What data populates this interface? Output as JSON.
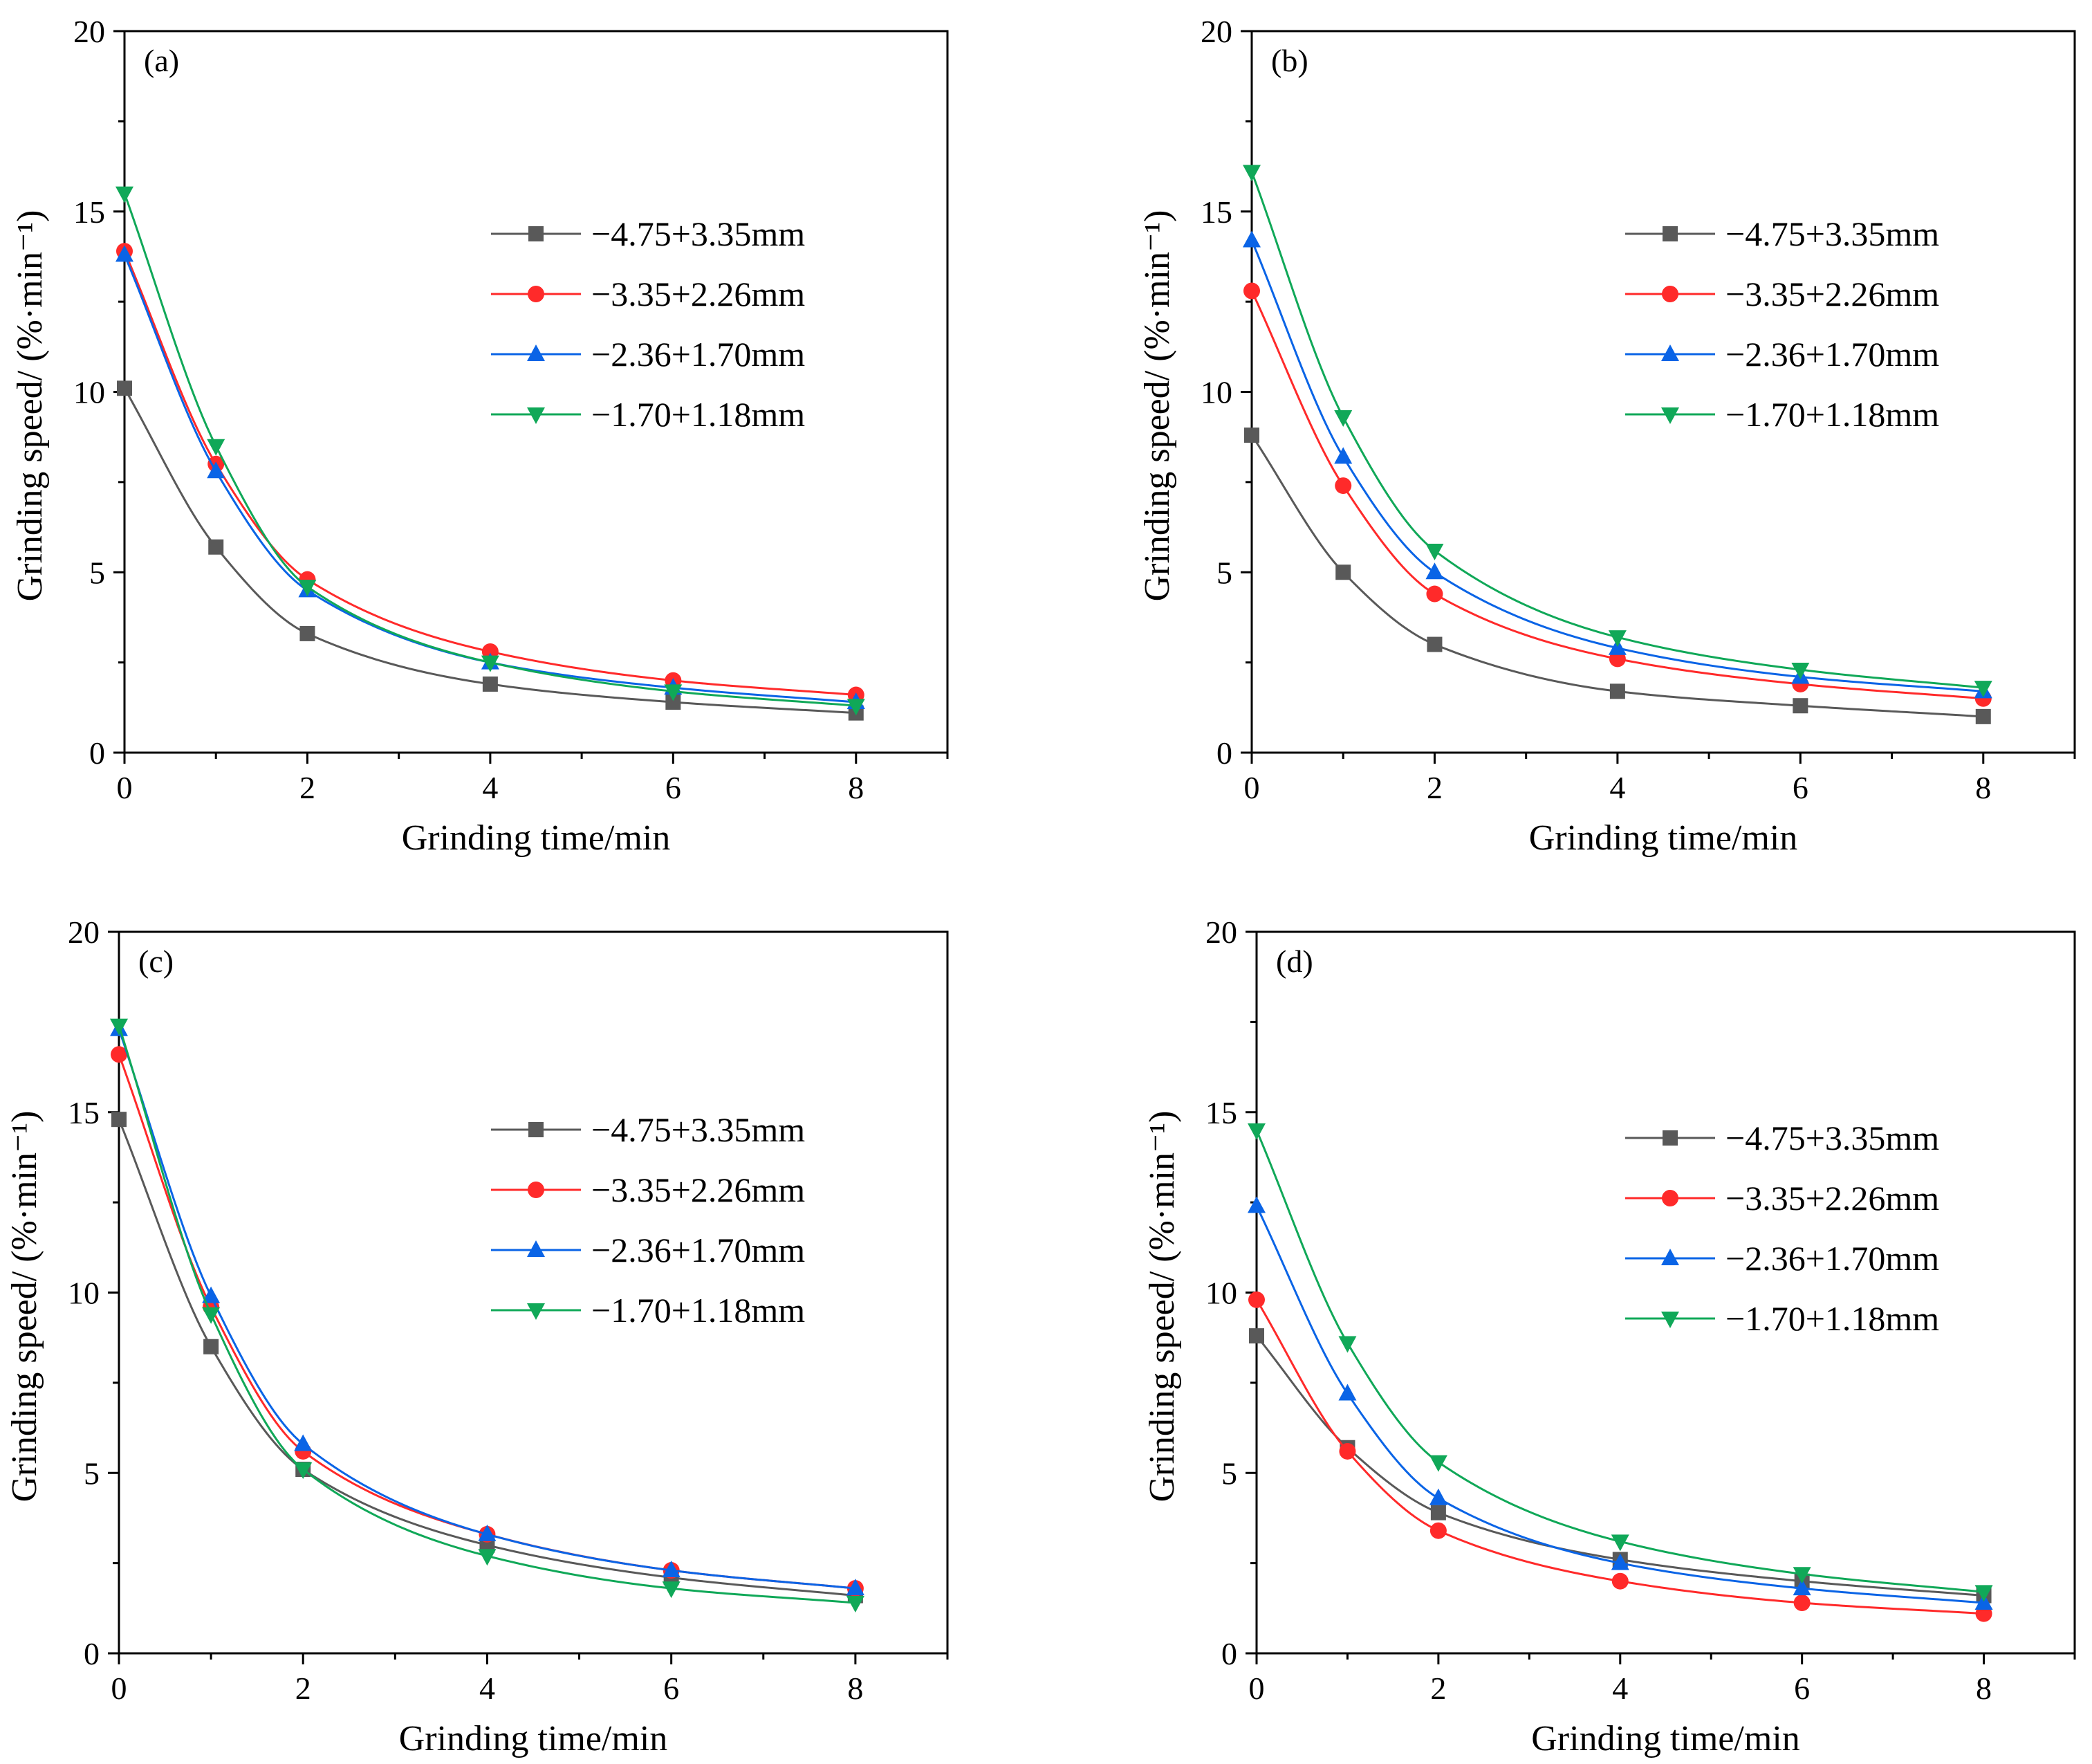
{
  "figure": {
    "colors": {
      "series": [
        "#595959",
        "#ff2a2a",
        "#0a64e6",
        "#10a858"
      ],
      "markers": [
        "square",
        "circle",
        "triangle-up",
        "triangle-down"
      ]
    },
    "legend_labels": [
      "−4.75+3.35mm",
      "−3.35+2.26mm",
      "−2.36+1.70mm",
      "−1.70+1.18mm"
    ]
  },
  "chart_data": [
    {
      "type": "line",
      "panel_label": "(a)",
      "xlabel": "Grinding time/min",
      "ylabel": "Grinding speed/ (%·min⁻¹)",
      "xlim": [
        0,
        9
      ],
      "ylim": [
        0,
        20
      ],
      "xticks": [
        0,
        2,
        4,
        6,
        8
      ],
      "yticks": [
        0,
        5,
        10,
        15,
        20
      ],
      "legend_position": "upper-middle",
      "x": [
        0,
        1,
        2,
        4,
        6,
        8
      ],
      "series": [
        {
          "name": "−4.75+3.35mm",
          "values": [
            10.1,
            5.7,
            3.3,
            1.9,
            1.4,
            1.1
          ]
        },
        {
          "name": "−3.35+2.26mm",
          "values": [
            13.9,
            8.0,
            4.8,
            2.8,
            2.0,
            1.6
          ]
        },
        {
          "name": "−2.36+1.70mm",
          "values": [
            13.8,
            7.8,
            4.5,
            2.5,
            1.8,
            1.4
          ]
        },
        {
          "name": "−1.70+1.18mm",
          "values": [
            15.5,
            8.5,
            4.6,
            2.5,
            1.7,
            1.3
          ]
        }
      ]
    },
    {
      "type": "line",
      "panel_label": "(b)",
      "xlabel": "Grinding time/min",
      "ylabel": "Grinding speed/ (%·min⁻¹)",
      "xlim": [
        0,
        9
      ],
      "ylim": [
        0,
        20
      ],
      "xticks": [
        0,
        2,
        4,
        6,
        8
      ],
      "yticks": [
        0,
        5,
        10,
        15,
        20
      ],
      "legend_position": "upper-right",
      "x": [
        0,
        1,
        2,
        4,
        6,
        8
      ],
      "series": [
        {
          "name": "−4.75+3.35mm",
          "values": [
            8.8,
            5.0,
            3.0,
            1.7,
            1.3,
            1.0
          ]
        },
        {
          "name": "−3.35+2.26mm",
          "values": [
            12.8,
            7.4,
            4.4,
            2.6,
            1.9,
            1.5
          ]
        },
        {
          "name": "−2.36+1.70mm",
          "values": [
            14.2,
            8.2,
            5.0,
            2.9,
            2.1,
            1.7
          ]
        },
        {
          "name": "−1.70+1.18mm",
          "values": [
            16.1,
            9.3,
            5.6,
            3.2,
            2.3,
            1.8
          ]
        }
      ]
    },
    {
      "type": "line",
      "panel_label": "(c)",
      "xlabel": "Grinding time/min",
      "ylabel": "Grinding speed/ (%·min⁻¹)",
      "xlim": [
        0,
        9
      ],
      "ylim": [
        0,
        20
      ],
      "xticks": [
        0,
        2,
        4,
        6,
        8
      ],
      "yticks": [
        0,
        5,
        10,
        15,
        20
      ],
      "legend_position": "upper-middle",
      "x": [
        0,
        1,
        2,
        4,
        6,
        8
      ],
      "series": [
        {
          "name": "−4.75+3.35mm",
          "values": [
            14.8,
            8.5,
            5.1,
            3.0,
            2.1,
            1.6
          ]
        },
        {
          "name": "−3.35+2.26mm",
          "values": [
            16.6,
            9.6,
            5.6,
            3.3,
            2.3,
            1.8
          ]
        },
        {
          "name": "−2.36+1.70mm",
          "values": [
            17.3,
            9.9,
            5.8,
            3.3,
            2.3,
            1.8
          ]
        },
        {
          "name": "−1.70+1.18mm",
          "values": [
            17.4,
            9.4,
            5.1,
            2.7,
            1.8,
            1.4
          ]
        }
      ]
    },
    {
      "type": "line",
      "panel_label": "(d)",
      "xlabel": "Grinding time/min",
      "ylabel": "Grinding speed/ (%·min⁻¹)",
      "xlim": [
        0,
        9
      ],
      "ylim": [
        0,
        20
      ],
      "xticks": [
        0,
        2,
        4,
        6,
        8
      ],
      "yticks": [
        0,
        5,
        10,
        15,
        20
      ],
      "legend_position": "upper-right",
      "x": [
        0,
        1,
        2,
        4,
        6,
        8
      ],
      "series": [
        {
          "name": "−4.75+3.35mm",
          "values": [
            8.8,
            5.7,
            3.9,
            2.6,
            2.0,
            1.6
          ]
        },
        {
          "name": "−3.35+2.26mm",
          "values": [
            9.8,
            5.6,
            3.4,
            2.0,
            1.4,
            1.1
          ]
        },
        {
          "name": "−2.36+1.70mm",
          "values": [
            12.4,
            7.2,
            4.3,
            2.5,
            1.8,
            1.4
          ]
        },
        {
          "name": "−1.70+1.18mm",
          "values": [
            14.5,
            8.6,
            5.3,
            3.1,
            2.2,
            1.7
          ]
        }
      ]
    }
  ]
}
